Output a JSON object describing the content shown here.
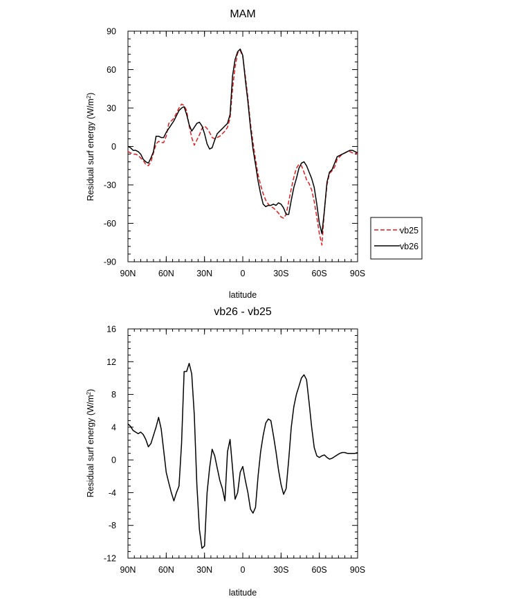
{
  "chart_data": [
    {
      "type": "line",
      "title": "MAM",
      "xlabel": "latitude",
      "ylabel_main": "Residual surf energy (W/m",
      "ylabel_sup": "2",
      "ylabel_tail": ")",
      "xlim": [
        90,
        -90
      ],
      "ylim": [
        -90,
        90
      ],
      "xticks": [
        {
          "value": 90,
          "label": "90N"
        },
        {
          "value": 60,
          "label": "60N"
        },
        {
          "value": 30,
          "label": "30N"
        },
        {
          "value": 0,
          "label": "0"
        },
        {
          "value": -30,
          "label": "30S"
        },
        {
          "value": -60,
          "label": "60S"
        },
        {
          "value": -90,
          "label": "90S"
        }
      ],
      "yticks": [
        {
          "value": 90,
          "label": "90"
        },
        {
          "value": 60,
          "label": "60"
        },
        {
          "value": 30,
          "label": "30"
        },
        {
          "value": 0,
          "label": "0"
        },
        {
          "value": -30,
          "label": "-30"
        },
        {
          "value": -60,
          "label": "-60"
        },
        {
          "value": -90,
          "label": "-90"
        }
      ],
      "legend_position": "right",
      "series": [
        {
          "name": "vb25",
          "color": "#e41a1c",
          "dash": "dashed",
          "x": [
            90,
            88,
            86,
            84,
            82,
            80,
            78,
            76,
            74,
            72,
            70,
            68,
            66,
            64,
            62,
            60,
            58,
            56,
            54,
            52,
            50,
            48,
            46,
            44,
            42,
            40,
            38,
            36,
            34,
            32,
            30,
            28,
            26,
            24,
            22,
            20,
            18,
            16,
            14,
            12,
            10,
            8,
            6,
            4,
            2,
            0,
            -2,
            -4,
            -6,
            -8,
            -10,
            -12,
            -14,
            -16,
            -18,
            -20,
            -22,
            -24,
            -26,
            -28,
            -30,
            -32,
            -34,
            -36,
            -38,
            -40,
            -42,
            -44,
            -46,
            -48,
            -50,
            -52,
            -54,
            -56,
            -58,
            -60,
            -62,
            -64,
            -66,
            -68,
            -70,
            -72,
            -74,
            -76,
            -78,
            -80,
            -82,
            -84,
            -86,
            -88,
            -90
          ],
          "values": [
            -4,
            -5,
            -6,
            -6,
            -7,
            -9,
            -11,
            -14,
            -15,
            -12,
            -5,
            2,
            4,
            3,
            3,
            8,
            18,
            20,
            22,
            26,
            30,
            33,
            32,
            28,
            16,
            7,
            1,
            5,
            9,
            14,
            16,
            14,
            11,
            7,
            6,
            7,
            8,
            10,
            12,
            15,
            22,
            45,
            62,
            73,
            75,
            70,
            55,
            38,
            18,
            3,
            -10,
            -22,
            -30,
            -37,
            -42,
            -45,
            -47,
            -48,
            -50,
            -52,
            -55,
            -56,
            -53,
            -43,
            -33,
            -24,
            -17,
            -14,
            -15,
            -20,
            -26,
            -29,
            -34,
            -43,
            -55,
            -68,
            -77,
            -50,
            -30,
            -21,
            -19,
            -16,
            -10,
            -8,
            -6,
            -5,
            -4,
            -4,
            -5,
            -5,
            -6
          ]
        },
        {
          "name": "vb26",
          "color": "#000000",
          "dash": "solid",
          "x": [
            90,
            88,
            86,
            84,
            82,
            80,
            78,
            76,
            74,
            72,
            70,
            68,
            66,
            64,
            62,
            60,
            58,
            56,
            54,
            52,
            50,
            48,
            46,
            44,
            42,
            40,
            38,
            36,
            34,
            32,
            30,
            28,
            26,
            24,
            22,
            20,
            18,
            16,
            14,
            12,
            10,
            8,
            6,
            4,
            2,
            0,
            -2,
            -4,
            -6,
            -8,
            -10,
            -12,
            -14,
            -16,
            -18,
            -20,
            -22,
            -24,
            -26,
            -28,
            -30,
            -32,
            -34,
            -36,
            -38,
            -40,
            -42,
            -44,
            -46,
            -48,
            -50,
            -52,
            -54,
            -56,
            -58,
            -60,
            -62,
            -64,
            -66,
            -68,
            -70,
            -72,
            -74,
            -76,
            -78,
            -80,
            -82,
            -84,
            -86,
            -88,
            -90
          ],
          "values": [
            0,
            -1,
            -3,
            -3,
            -4,
            -6,
            -10,
            -12,
            -13,
            -9,
            -4,
            8,
            8,
            7,
            7,
            11,
            14,
            17,
            20,
            24,
            28,
            30,
            31,
            25,
            17,
            12,
            15,
            18,
            19,
            16,
            10,
            2,
            -2,
            -1,
            5,
            10,
            12,
            14,
            16,
            18,
            25,
            55,
            68,
            74,
            76,
            71,
            52,
            35,
            15,
            -2,
            -14,
            -27,
            -37,
            -45,
            -47,
            -46,
            -46,
            -45,
            -46,
            -44,
            -45,
            -48,
            -53,
            -53,
            -42,
            -32,
            -25,
            -17,
            -13,
            -12,
            -15,
            -20,
            -25,
            -32,
            -45,
            -60,
            -68,
            -50,
            -28,
            -20,
            -18,
            -13,
            -8,
            -7,
            -6,
            -5,
            -4,
            -3,
            -3,
            -4,
            -5
          ]
        }
      ]
    },
    {
      "type": "line",
      "title": "vb26 - vb25",
      "xlabel": "latitude",
      "ylabel_main": "Residual surf energy (W/m",
      "ylabel_sup": "2",
      "ylabel_tail": ")",
      "xlim": [
        90,
        -90
      ],
      "ylim": [
        -12,
        16
      ],
      "xticks": [
        {
          "value": 90,
          "label": "90N"
        },
        {
          "value": 60,
          "label": "60N"
        },
        {
          "value": 30,
          "label": "30N"
        },
        {
          "value": 0,
          "label": "0"
        },
        {
          "value": -30,
          "label": "30S"
        },
        {
          "value": -60,
          "label": "60S"
        },
        {
          "value": -90,
          "label": "90S"
        }
      ],
      "yticks": [
        {
          "value": 16,
          "label": "16"
        },
        {
          "value": 12,
          "label": "12"
        },
        {
          "value": 8,
          "label": "8"
        },
        {
          "value": 4,
          "label": "4"
        },
        {
          "value": 0,
          "label": "0"
        },
        {
          "value": -4,
          "label": "-4"
        },
        {
          "value": -8,
          "label": "-8"
        },
        {
          "value": -12,
          "label": "-12"
        }
      ],
      "series": [
        {
          "color": "#000000",
          "dash": "solid",
          "x": [
            90,
            88,
            86,
            84,
            82,
            80,
            78,
            76,
            74,
            72,
            70,
            68,
            66,
            64,
            62,
            60,
            58,
            56,
            54,
            52,
            50,
            48,
            46,
            44,
            42,
            40,
            38,
            36,
            34,
            32,
            30,
            28,
            26,
            24,
            22,
            20,
            18,
            16,
            14,
            12,
            10,
            8,
            6,
            4,
            2,
            0,
            -2,
            -4,
            -6,
            -8,
            -10,
            -12,
            -14,
            -16,
            -18,
            -20,
            -22,
            -24,
            -26,
            -28,
            -30,
            -32,
            -34,
            -36,
            -38,
            -40,
            -42,
            -44,
            -46,
            -48,
            -50,
            -52,
            -54,
            -56,
            -58,
            -60,
            -62,
            -64,
            -66,
            -68,
            -70,
            -72,
            -74,
            -76,
            -78,
            -80,
            -82,
            -84,
            -86,
            -88,
            -90
          ],
          "values": [
            4.4,
            4.1,
            3.6,
            3.4,
            3.2,
            3.4,
            3.1,
            2.5,
            1.6,
            2.0,
            3.0,
            4.0,
            5.2,
            3.8,
            1.2,
            -1.5,
            -2.8,
            -4.0,
            -5.0,
            -4.0,
            -3.2,
            2.0,
            10.8,
            10.8,
            11.8,
            10.5,
            5.5,
            -3.0,
            -8.5,
            -10.8,
            -10.5,
            -4.0,
            -1.0,
            1.3,
            0.5,
            -1.0,
            -2.5,
            -3.5,
            -5.0,
            1.0,
            2.5,
            -1.0,
            -4.8,
            -4.0,
            -1.5,
            -0.8,
            -2.5,
            -4.0,
            -6.0,
            -6.5,
            -5.8,
            -2.0,
            1.0,
            3.0,
            4.5,
            5.0,
            4.8,
            3.0,
            1.0,
            -1.2,
            -3.0,
            -4.2,
            -3.5,
            0.0,
            4.0,
            6.5,
            8.0,
            9.0,
            10.0,
            10.4,
            9.8,
            7.0,
            4.0,
            1.5,
            0.5,
            0.3,
            0.5,
            0.6,
            0.3,
            0.1,
            0.2,
            0.4,
            0.6,
            0.8,
            0.9,
            0.9,
            0.8,
            0.8,
            0.8,
            0.8,
            0.9
          ]
        }
      ]
    }
  ],
  "legend": [
    {
      "label": "vb25",
      "color": "#e41a1c",
      "dash": "dashed"
    },
    {
      "label": "vb26",
      "color": "#000000",
      "dash": "solid"
    }
  ]
}
